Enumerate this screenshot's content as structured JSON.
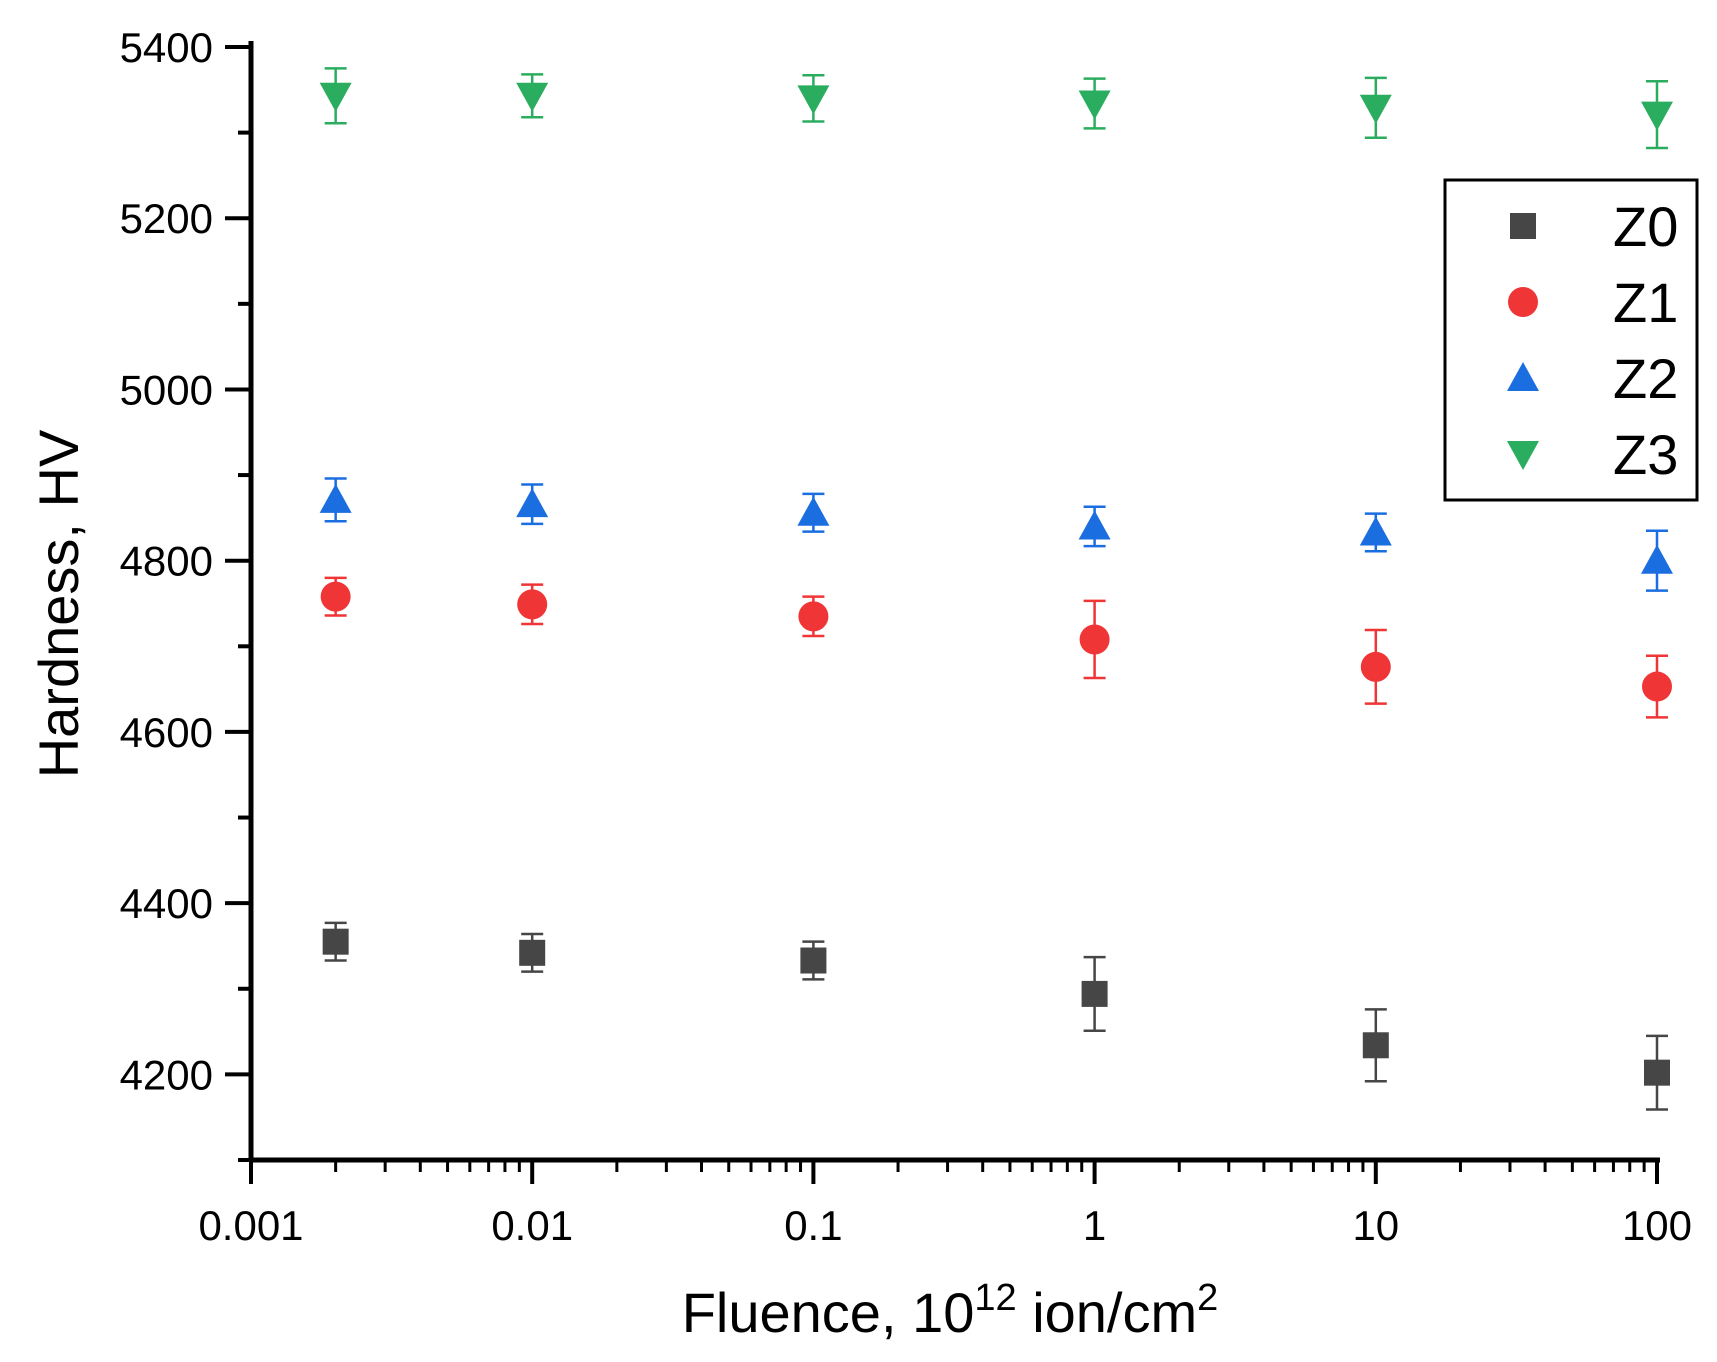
{
  "chart_data": {
    "type": "scatter",
    "title": "",
    "xlabel": {
      "main": "Fluence, 10",
      "sup1": "12",
      "mid": " ion/cm",
      "sup2": "2"
    },
    "ylabel": "Hardness, HV",
    "xscale": "log",
    "xlim": [
      0.001,
      100
    ],
    "ylim": [
      4100,
      5400
    ],
    "x_ticks": [
      0.001,
      0.01,
      0.1,
      1,
      10,
      100
    ],
    "x_tick_labels": [
      "0.001",
      "0.01",
      "0.1",
      "1",
      "10",
      "100"
    ],
    "y_ticks": [
      4200,
      4400,
      4600,
      4800,
      5000,
      5200,
      5400
    ],
    "y_tick_labels": [
      "4200",
      "4400",
      "4600",
      "4800",
      "5000",
      "5200",
      "5400"
    ],
    "x": [
      0.002,
      0.01,
      0.1,
      1,
      10,
      100
    ],
    "legend_position": "upper-right",
    "series": [
      {
        "name": "Z0",
        "marker": "square",
        "color": "#464646",
        "values": [
          4355,
          4342,
          4333,
          4294,
          4234,
          4202
        ],
        "errors": [
          22,
          22,
          22,
          43,
          42,
          43
        ]
      },
      {
        "name": "Z1",
        "marker": "circle",
        "color": "#ef3535",
        "values": [
          4758,
          4749,
          4735,
          4708,
          4676,
          4653
        ],
        "errors": [
          22,
          23,
          23,
          45,
          43,
          36
        ]
      },
      {
        "name": "Z2",
        "marker": "triangle-up",
        "color": "#1a6ee0",
        "values": [
          4871,
          4866,
          4856,
          4840,
          4833,
          4800
        ],
        "errors": [
          25,
          23,
          22,
          23,
          22,
          35
        ]
      },
      {
        "name": "Z3",
        "marker": "triangle-down",
        "color": "#2bad5f",
        "values": [
          5343,
          5343,
          5340,
          5334,
          5329,
          5321
        ],
        "errors": [
          32,
          25,
          27,
          29,
          35,
          39
        ]
      }
    ]
  }
}
